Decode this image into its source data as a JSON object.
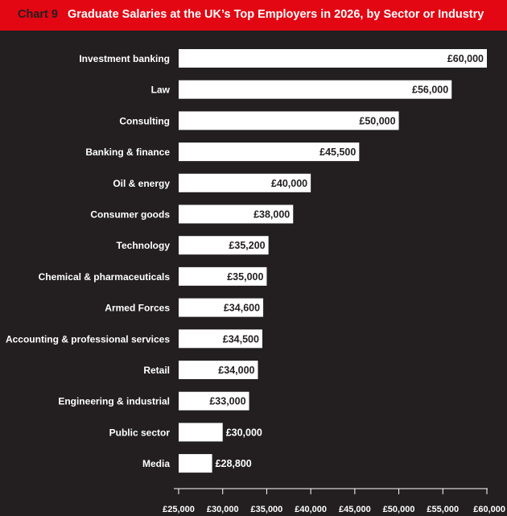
{
  "header": {
    "chart_number": "Chart 9",
    "title": "Graduate Salaries at the UK’s Top Employers in 2026, by Sector or Industry"
  },
  "colors": {
    "background": "#231f20",
    "title_bar": "#e30613",
    "bar": "#ffffff",
    "bar_label_inside": "#231f20",
    "text": "#ffffff"
  },
  "chart_data": {
    "type": "bar",
    "orientation": "horizontal",
    "title": "Graduate Salaries at the UK’s Top Employers in 2026, by Sector or Industry",
    "categories": [
      "Investment banking",
      "Law",
      "Consulting",
      "Banking & finance",
      "Oil & energy",
      "Consumer goods",
      "Technology",
      "Chemical & pharmaceuticals",
      "Armed Forces",
      "Accounting & professional services",
      "Retail",
      "Engineering & industrial",
      "Public sector",
      "Media"
    ],
    "values": [
      60000,
      56000,
      50000,
      45500,
      40000,
      38000,
      35200,
      35000,
      34600,
      34500,
      34000,
      33000,
      30000,
      28800
    ],
    "value_labels": [
      "£60,000",
      "£56,000",
      "£50,000",
      "£45,500",
      "£40,000",
      "£38,000",
      "£35,200",
      "£35,000",
      "£34,600",
      "£34,500",
      "£34,000",
      "£33,000",
      "£30,000",
      "£28,800"
    ],
    "xlim": [
      25000,
      60000
    ],
    "x_ticks": [
      25000,
      30000,
      35000,
      40000,
      45000,
      50000,
      55000,
      60000
    ],
    "x_tick_labels": [
      "£25,000",
      "£30,000",
      "£35,000",
      "£40,000",
      "£45,000",
      "£50,000",
      "£55,000",
      "£60,000"
    ],
    "xlabel": "",
    "ylabel": "",
    "grid": false,
    "legend": "none"
  }
}
